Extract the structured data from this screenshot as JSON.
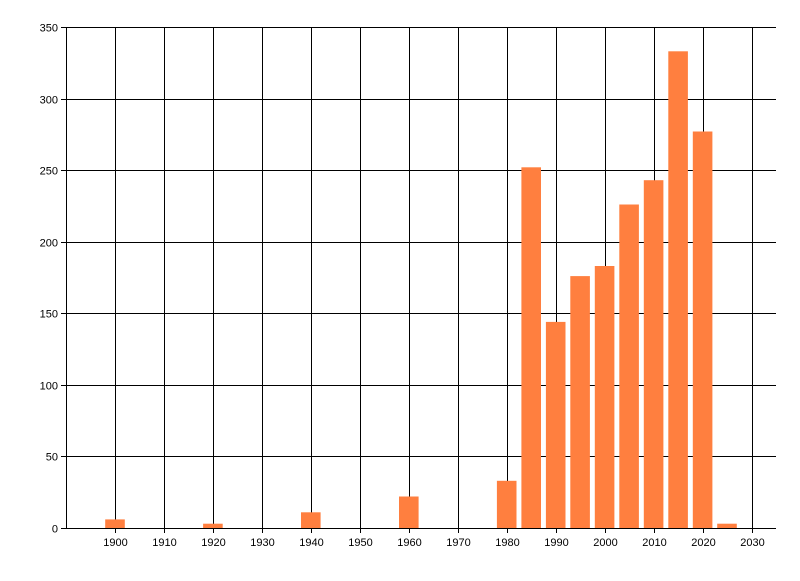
{
  "chart_data": {
    "type": "bar",
    "title": "",
    "xlabel": "",
    "ylabel": "",
    "xlim": [
      1890,
      2035
    ],
    "ylim": [
      0,
      350
    ],
    "x_ticks": [
      1900,
      1910,
      1920,
      1930,
      1940,
      1950,
      1960,
      1970,
      1980,
      1990,
      2000,
      2010,
      2020,
      2030
    ],
    "y_ticks": [
      0,
      50,
      100,
      150,
      200,
      250,
      300,
      350
    ],
    "grid": true,
    "legend": "none",
    "bar_color": "#FF7F3F",
    "bar_width_years": 4,
    "x": [
      1900,
      1920,
      1940,
      1960,
      1980,
      1985,
      1990,
      1995,
      2000,
      2005,
      2010,
      2015,
      2020,
      2025
    ],
    "values": [
      6,
      3,
      11,
      22,
      33,
      252,
      144,
      176,
      183,
      226,
      243,
      333,
      277,
      3
    ]
  }
}
